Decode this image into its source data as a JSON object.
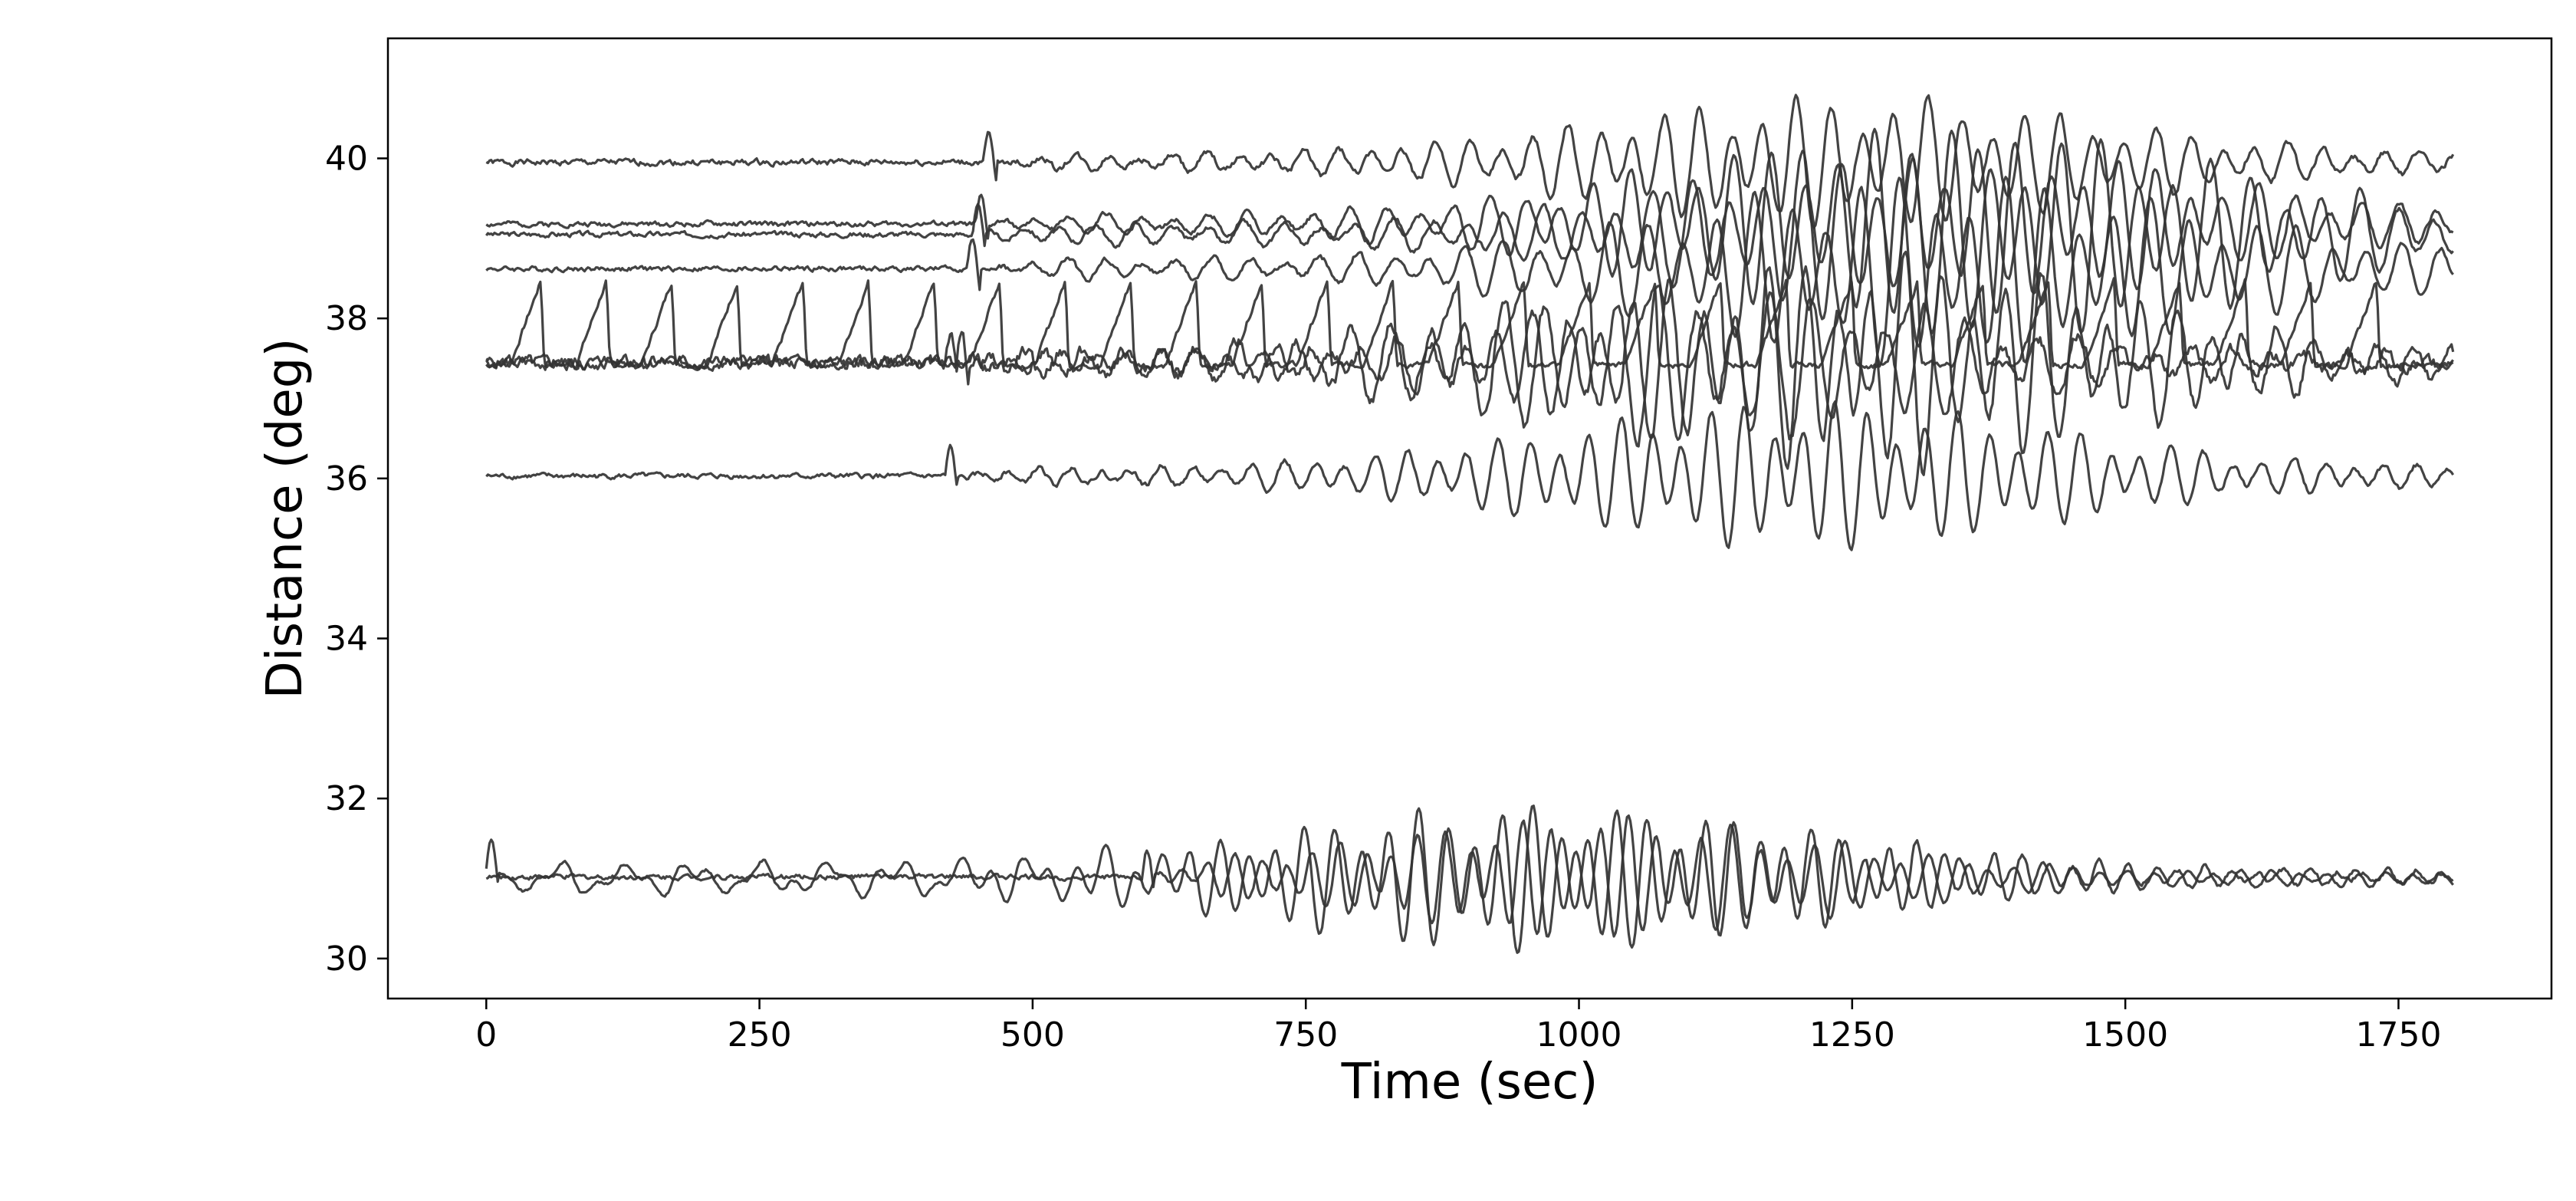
{
  "chart_data": {
    "type": "line",
    "title": "",
    "xlabel": "Time (sec)",
    "ylabel": "Distance (deg)",
    "xlim": [
      -90,
      1890
    ],
    "ylim": [
      29.5,
      41.5
    ],
    "xticks": [
      0,
      250,
      500,
      750,
      1000,
      1250,
      1500,
      1750
    ],
    "yticks": [
      30,
      32,
      34,
      36,
      38,
      40
    ],
    "grid": false,
    "legend": "none",
    "line_color": "#333333",
    "series": [
      {
        "baseline": 39.95,
        "onset": 455,
        "peak_time": 1250,
        "max_amp": 0.75,
        "period": 30,
        "jitter": 0.06,
        "spikes": [],
        "seed": 1
      },
      {
        "baseline": 39.18,
        "onset": 448,
        "peak_time": 1300,
        "max_amp": 1.05,
        "period": 32,
        "jitter": 0.05,
        "spikes": [],
        "seed": 2
      },
      {
        "baseline": 39.05,
        "onset": 445,
        "peak_time": 1380,
        "max_amp": 1.2,
        "period": 34,
        "jitter": 0.05,
        "spikes": [],
        "seed": 3
      },
      {
        "baseline": 38.62,
        "onset": 440,
        "peak_time": 1330,
        "max_amp": 1.1,
        "period": 33,
        "jitter": 0.05,
        "spikes": [],
        "seed": 4
      },
      {
        "baseline": 37.45,
        "onset": 430,
        "peak_time": 1270,
        "max_amp": 1.25,
        "period": 31,
        "jitter": 0.12,
        "spikes": [],
        "seed": 5
      },
      {
        "baseline": 37.45,
        "onset": 420,
        "peak_time": 1100,
        "max_amp": 0.9,
        "period": 35,
        "jitter": 0.12,
        "spikes": [],
        "seed": 6
      },
      {
        "baseline": 37.42,
        "onset": 0,
        "peak_time": 1000,
        "max_amp": 0.0,
        "period": 40,
        "jitter": 0.06,
        "spikes": [
          50,
          110,
          170,
          230,
          290,
          350,
          410,
          470,
          530,
          590,
          650,
          710,
          770,
          830,
          890,
          950,
          1010,
          1070,
          1130,
          1190,
          1250,
          1310,
          1370,
          1430,
          1490,
          1550,
          1610,
          1670,
          1730
        ],
        "spike_height": 1.05,
        "seed": 7
      },
      {
        "baseline": 36.03,
        "onset": 420,
        "peak_time": 1210,
        "max_amp": 0.85,
        "period": 28,
        "jitter": 0.05,
        "spikes": [],
        "seed": 8
      },
      {
        "baseline": 31.0,
        "onset": 0,
        "peak_time": 950,
        "max_amp": 0.85,
        "period": 26,
        "jitter": 0.03,
        "spikes": [],
        "slow_wave": true,
        "seed": 9
      },
      {
        "baseline": 31.02,
        "onset": 600,
        "peak_time": 1050,
        "max_amp": 0.7,
        "period": 24,
        "jitter": 0.05,
        "spikes": [],
        "seed": 10
      }
    ]
  }
}
